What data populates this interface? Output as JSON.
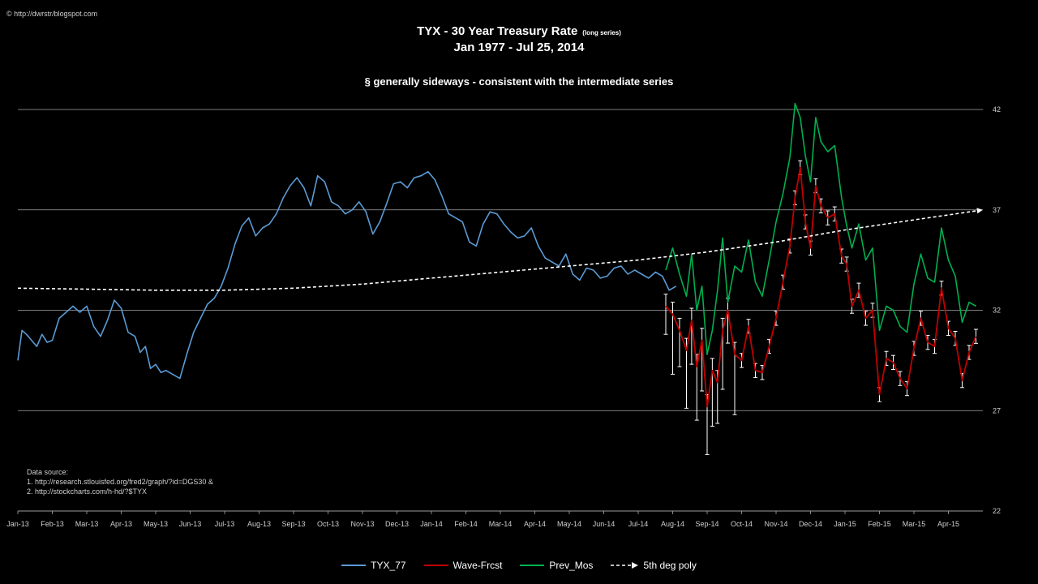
{
  "credit": "© http://dwrstr/blogspot.com",
  "title": "TYX - 30 Year  Treasury Rate",
  "title_small": "(long series)",
  "subtitle": "Jan 1977 -  Jul 25, 2014",
  "note": "§ generally sideways -  consistent with the intermediate series",
  "data_source": {
    "heading": "Data source:",
    "line1": "1. http://research.stlouisfed.org/fred2/graph/?id=DGS30  &",
    "line2": "2. http://stockcharts.com/h-hd/?$TYX"
  },
  "colors": {
    "tyx": "#5b9bd5",
    "wave": "#c00000",
    "prev": "#00b050",
    "poly": "#ffffff",
    "bands": "#ffffff",
    "grid": "#a6a6a6"
  },
  "chart_data": {
    "type": "line",
    "ylim": [
      22,
      42
    ],
    "yticks": [
      "22",
      "27",
      "32",
      "37",
      "42"
    ],
    "x_categories": [
      "Jan-13",
      "Feb-13",
      "Mar-13",
      "Apr-13",
      "May-13",
      "Jun-13",
      "Jul-13",
      "Aug-13",
      "Sep-13",
      "Oct-13",
      "Nov-13",
      "Dec-13",
      "Jan-14",
      "Feb-14",
      "Mar-14",
      "Apr-14",
      "May-14",
      "Jun-14",
      "Jul-14",
      "Aug-14",
      "Sep-14",
      "Oct-14",
      "Nov-14",
      "Dec-14",
      "Jan-15",
      "Feb-15",
      "Mar-15",
      "Apr-15"
    ],
    "x_range": [
      0,
      28
    ],
    "legend_position": "bottom",
    "series": [
      {
        "name": "TYX_77",
        "x": [
          0,
          0.12,
          0.25,
          0.4,
          0.55,
          0.7,
          0.85,
          1.0,
          1.2,
          1.4,
          1.6,
          1.8,
          2.0,
          2.2,
          2.4,
          2.6,
          2.8,
          3.0,
          3.2,
          3.4,
          3.55,
          3.7,
          3.85,
          4.0,
          4.15,
          4.3,
          4.5,
          4.7,
          4.9,
          5.1,
          5.3,
          5.5,
          5.7,
          5.9,
          6.1,
          6.3,
          6.5,
          6.7,
          6.9,
          7.1,
          7.3,
          7.5,
          7.7,
          7.9,
          8.1,
          8.3,
          8.5,
          8.7,
          8.9,
          9.1,
          9.3,
          9.5,
          9.7,
          9.9,
          10.1,
          10.3,
          10.5,
          10.7,
          10.9,
          11.1,
          11.3,
          11.5,
          11.7,
          11.9,
          12.1,
          12.3,
          12.5,
          12.7,
          12.9,
          13.1,
          13.3,
          13.5,
          13.7,
          13.9,
          14.1,
          14.3,
          14.5,
          14.7,
          14.9,
          15.1,
          15.3,
          15.5,
          15.7,
          15.9,
          16.1,
          16.3,
          16.5,
          16.7,
          16.9,
          17.1,
          17.3,
          17.5,
          17.7,
          17.9,
          18.1,
          18.3,
          18.5,
          18.7,
          18.9,
          19.1
        ],
        "values": [
          29.5,
          31.0,
          30.8,
          30.5,
          30.2,
          30.8,
          30.4,
          30.5,
          31.6,
          31.9,
          32.2,
          31.9,
          32.2,
          31.2,
          30.7,
          31.5,
          32.5,
          32.1,
          30.9,
          30.7,
          29.9,
          30.2,
          29.1,
          29.3,
          28.9,
          29.0,
          28.8,
          28.6,
          29.8,
          30.9,
          31.6,
          32.3,
          32.6,
          33.2,
          34.1,
          35.3,
          36.2,
          36.6,
          35.7,
          36.1,
          36.3,
          36.8,
          37.6,
          38.2,
          38.6,
          38.1,
          37.2,
          38.7,
          38.4,
          37.4,
          37.2,
          36.8,
          37.0,
          37.4,
          36.9,
          35.8,
          36.4,
          37.3,
          38.3,
          38.4,
          38.1,
          38.6,
          38.7,
          38.9,
          38.5,
          37.7,
          36.8,
          36.6,
          36.4,
          35.4,
          35.2,
          36.3,
          36.9,
          36.8,
          36.3,
          35.9,
          35.6,
          35.7,
          36.1,
          35.2,
          34.6,
          34.4,
          34.2,
          34.8,
          33.8,
          33.5,
          34.1,
          34.0,
          33.6,
          33.7,
          34.1,
          34.2,
          33.8,
          34.0,
          33.8,
          33.6,
          33.9,
          33.7,
          33.0,
          33.2
        ]
      },
      {
        "name": "Wave-Frcst",
        "x": [
          18.8,
          19.0,
          19.2,
          19.4,
          19.55,
          19.7,
          19.85,
          20.0,
          20.15,
          20.3,
          20.45,
          20.6,
          20.8,
          21.0,
          21.2,
          21.4,
          21.6,
          21.8,
          22.0,
          22.2,
          22.4,
          22.55,
          22.7,
          22.85,
          23.0,
          23.15,
          23.3,
          23.5,
          23.7,
          23.9,
          24.05,
          24.2,
          24.4,
          24.6,
          24.8,
          25.0,
          25.2,
          25.4,
          25.6,
          25.8,
          26.0,
          26.2,
          26.4,
          26.6,
          26.8,
          27.0,
          27.2,
          27.4,
          27.6,
          27.8
        ],
        "values": [
          32.2,
          31.8,
          31.0,
          30.0,
          31.5,
          29.2,
          30.5,
          27.2,
          29.0,
          28.4,
          31.0,
          32.0,
          29.8,
          29.5,
          31.2,
          29.0,
          28.9,
          30.2,
          31.6,
          33.4,
          35.2,
          37.6,
          39.1,
          36.4,
          35.1,
          38.2,
          37.2,
          36.6,
          36.8,
          34.7,
          34.3,
          32.2,
          33.0,
          31.6,
          32.0,
          27.8,
          29.6,
          29.4,
          28.6,
          28.1,
          30.1,
          31.6,
          30.4,
          30.2,
          33.1,
          31.1,
          30.6,
          28.5,
          29.9,
          30.7
        ]
      },
      {
        "name": "Prev_Mos",
        "x": [
          18.8,
          19.0,
          19.2,
          19.4,
          19.55,
          19.7,
          19.85,
          20.0,
          20.15,
          20.3,
          20.45,
          20.6,
          20.8,
          21.0,
          21.2,
          21.4,
          21.6,
          21.8,
          22.0,
          22.2,
          22.4,
          22.55,
          22.7,
          22.85,
          23.0,
          23.15,
          23.3,
          23.5,
          23.7,
          23.9,
          24.05,
          24.2,
          24.4,
          24.6,
          24.8,
          25.0,
          25.2,
          25.4,
          25.6,
          25.8,
          26.0,
          26.2,
          26.4,
          26.6,
          26.8,
          27.0,
          27.2,
          27.4,
          27.6,
          27.8
        ],
        "values": [
          34.0,
          35.1,
          33.8,
          32.7,
          34.8,
          32.0,
          33.2,
          29.8,
          31.0,
          33.0,
          35.6,
          32.4,
          34.2,
          33.9,
          35.5,
          33.4,
          32.7,
          34.5,
          36.4,
          37.8,
          39.6,
          42.3,
          41.6,
          39.7,
          38.4,
          41.6,
          40.4,
          39.9,
          40.2,
          37.6,
          36.2,
          35.1,
          36.3,
          34.5,
          35.1,
          31.0,
          32.2,
          32.0,
          31.2,
          30.9,
          33.3,
          34.8,
          33.6,
          33.4,
          36.1,
          34.5,
          33.7,
          31.4,
          32.4,
          32.2
        ]
      },
      {
        "name": "5th deg poly",
        "x": [
          0,
          2,
          4,
          6,
          8,
          10,
          12,
          14,
          16,
          18,
          20,
          22,
          24,
          26,
          28
        ],
        "values": [
          33.1,
          33.05,
          33.0,
          33.0,
          33.1,
          33.3,
          33.6,
          33.9,
          34.2,
          34.5,
          34.9,
          35.4,
          36.0,
          36.5,
          37.0
        ]
      }
    ]
  }
}
